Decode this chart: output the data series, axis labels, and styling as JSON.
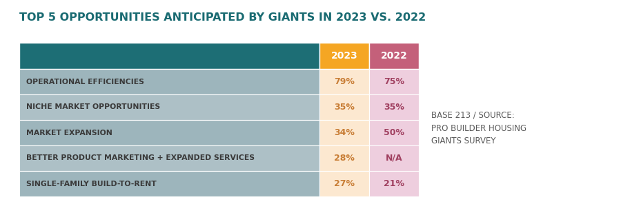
{
  "title": "TOP 5 OPPORTUNITIES ANTICIPATED BY GIANTS IN 2023 VS. 2022",
  "title_color": "#1a6b72",
  "title_fontsize": 11.5,
  "categories": [
    "OPERATIONAL EFFICIENCIES",
    "NICHE MARKET OPPORTUNITIES",
    "MARKET EXPANSION",
    "BETTER PRODUCT MARKETING + EXPANDED SERVICES",
    "SINGLE-FAMILY BUILD-TO-RENT"
  ],
  "values_2023": [
    "79%",
    "35%",
    "34%",
    "28%",
    "27%"
  ],
  "values_2022": [
    "75%",
    "35%",
    "50%",
    "N/A",
    "21%"
  ],
  "header_bg_color": "#1d6e75",
  "header_2023_color": "#f5a623",
  "header_2022_color": "#c4607a",
  "row_bg_a": "#9db5bc",
  "row_bg_b": "#adc0c6",
  "col_2023_bg": "#fce8d0",
  "col_2022_bg": "#eecede",
  "header_text_color": "#ffffff",
  "row_label_color": "#3a3a3a",
  "value_color_2023": "#c87d35",
  "value_color_2022": "#a04060",
  "source_text": "BASE 213 / SOURCE:\nPRO BUILDER HOUSING\nGIANTS SURVEY",
  "source_color": "#5a5a5a",
  "source_fontsize": 8.5,
  "background_color": "#ffffff"
}
